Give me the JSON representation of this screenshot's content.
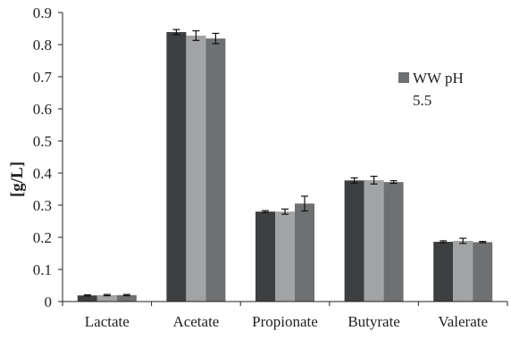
{
  "chart_data": {
    "type": "bar",
    "title": "",
    "xlabel": "",
    "ylabel": "[g/L]",
    "ylim": [
      0,
      0.9
    ],
    "yticks": [
      "0",
      "0.1",
      "0.2",
      "0.3",
      "0.4",
      "0.5",
      "0.6",
      "0.7",
      "0.8",
      "0.9"
    ],
    "categories": [
      "Lactate",
      "Acetate",
      "Propionate",
      "Butyrate",
      "Valerate"
    ],
    "grid": false,
    "legend": {
      "placement": "right",
      "label": "WW pH 5.5",
      "label_lines": [
        "WW pH",
        "5.5"
      ]
    },
    "series": [
      {
        "color": "#3d3f41",
        "values": [
          0.019,
          0.839,
          0.28,
          0.377,
          0.186
        ],
        "errors": [
          0.002,
          0.008,
          0.003,
          0.008,
          0.003
        ]
      },
      {
        "color": "#a2a3a4",
        "values": [
          0.02,
          0.828,
          0.28,
          0.378,
          0.189
        ],
        "errors": [
          0.002,
          0.015,
          0.008,
          0.012,
          0.008
        ]
      },
      {
        "color": "#6e7071",
        "values": [
          0.02,
          0.819,
          0.305,
          0.372,
          0.185
        ],
        "errors": [
          0.002,
          0.016,
          0.023,
          0.004,
          0.002
        ]
      }
    ]
  }
}
